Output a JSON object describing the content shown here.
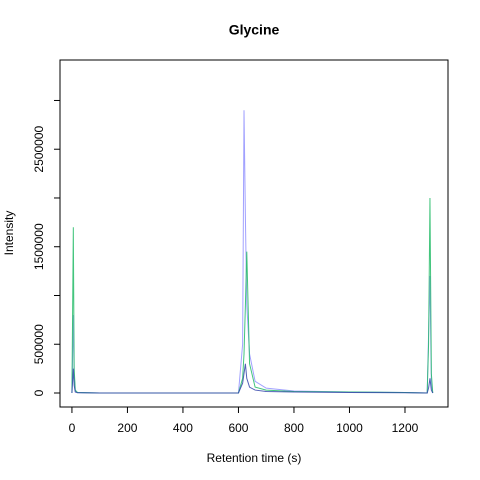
{
  "chart_data": {
    "type": "line",
    "title": "Glycine",
    "xlabel": "Retention time (s)",
    "ylabel": "Intensity",
    "x": [
      0,
      5,
      8,
      12,
      20,
      100,
      600,
      615,
      620,
      625,
      630,
      640,
      660,
      700,
      800,
      1000,
      1200,
      1280,
      1285,
      1290,
      1295,
      1300
    ],
    "series": [
      {
        "color": "#9090ff",
        "values": [
          0,
          800000,
          200000,
          20000,
          5000,
          0,
          0,
          500000,
          2900000,
          1800000,
          900000,
          400000,
          120000,
          50000,
          20000,
          10000,
          5000,
          0,
          600000,
          1200000,
          100000,
          0
        ]
      },
      {
        "color": "#22bb66",
        "values": [
          0,
          1700000,
          250000,
          30000,
          5000,
          0,
          0,
          150000,
          400000,
          900000,
          1450000,
          300000,
          60000,
          30000,
          15000,
          10000,
          5000,
          0,
          500000,
          2000000,
          200000,
          0
        ]
      },
      {
        "color": "#3344aa",
        "values": [
          0,
          250000,
          80000,
          10000,
          2000,
          0,
          0,
          100000,
          200000,
          300000,
          150000,
          60000,
          30000,
          15000,
          10000,
          5000,
          2000,
          0,
          50000,
          150000,
          30000,
          0
        ]
      }
    ],
    "xlim": [
      -43,
      1355
    ],
    "xticks": [
      0,
      200,
      400,
      600,
      800,
      1000,
      1200
    ],
    "ylim": [
      -143600,
      3415000
    ],
    "yticks": [
      0,
      500000,
      1500000,
      2500000
    ],
    "yticks_unlabeled": [
      1000000,
      2000000,
      3000000
    ]
  }
}
